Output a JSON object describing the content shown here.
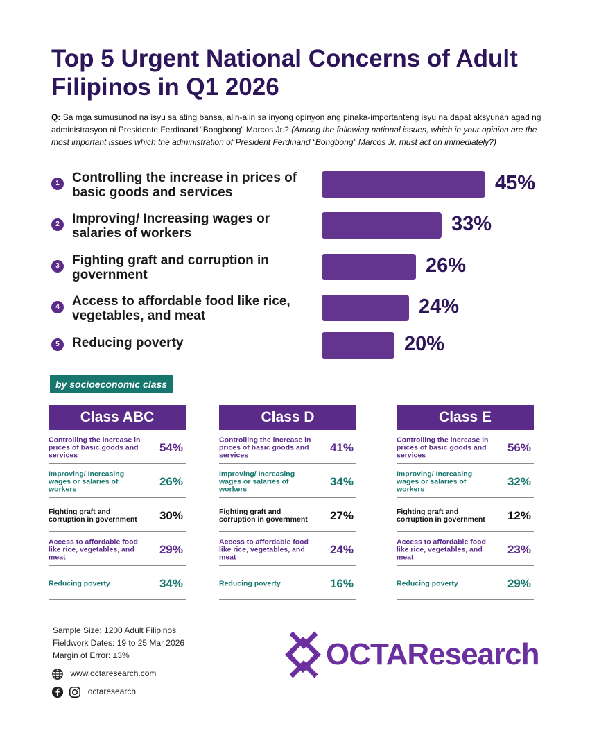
{
  "title": "Top 5 Urgent National Concerns of Adult Filipinos in Q1 2026",
  "question": {
    "label": "Q:",
    "text": "Sa mga sumusunod na isyu sa ating bansa, alin-alin sa inyong opinyon ang pinaka-importanteng isyu na dapat aksyunan agad ng administrasyon ni Presidente Ferdinand “Bongbong” Marcos Jr.?",
    "translation": "(Among the following national issues, which in your opinion are the most important issues which the administration of President Ferdinand “Bongbong” Marcos Jr. must act on immediately?)"
  },
  "chart_data": [
    {
      "type": "bar",
      "categories": [
        "Controlling the increase in prices of basic goods and services",
        "Improving/ Increasing wages or salaries of workers",
        "Fighting graft and corruption in government",
        "Access to affordable food like rice, vegetables, and meat",
        "Reducing poverty"
      ],
      "values": [
        45,
        33,
        26,
        24,
        20
      ],
      "value_labels": [
        "45%",
        "33%",
        "26%",
        "24%",
        "20%"
      ],
      "ranks": [
        "1",
        "2",
        "3",
        "4",
        "5"
      ],
      "bar_color": "#64358f"
    },
    {
      "type": "table",
      "subtitle": "by socioeconomic class",
      "columns": [
        {
          "name": "Class ABC",
          "rows": [
            {
              "label": "Controlling the increase in prices of basic goods and services",
              "value": "54%",
              "color": "#5b2b8a"
            },
            {
              "label": "Improving/ Increasing wages or salaries of workers",
              "value": "26%",
              "color": "#17776e"
            },
            {
              "label": "Fighting graft and corruption in government",
              "value": "30%",
              "color": "#111111"
            },
            {
              "label": "Access to affordable food like rice, vegetables, and meat",
              "value": "29%",
              "color": "#5b2b8a"
            },
            {
              "label": "Reducing poverty",
              "value": "34%",
              "color": "#17776e"
            }
          ]
        },
        {
          "name": "Class D",
          "rows": [
            {
              "label": "Controlling the increase in prices of basic goods and services",
              "value": "41%",
              "color": "#5b2b8a"
            },
            {
              "label": "Improving/ Increasing wages or salaries of workers",
              "value": "34%",
              "color": "#17776e"
            },
            {
              "label": "Fighting graft and corruption in government",
              "value": "27%",
              "color": "#111111"
            },
            {
              "label": "Access to affordable food like rice, vegetables, and meat",
              "value": "24%",
              "color": "#5b2b8a"
            },
            {
              "label": "Reducing poverty",
              "value": "16%",
              "color": "#17776e"
            }
          ]
        },
        {
          "name": "Class E",
          "rows": [
            {
              "label": "Controlling the increase in prices of basic goods and services",
              "value": "56%",
              "color": "#5b2b8a"
            },
            {
              "label": "Improving/ Increasing wages or salaries of workers",
              "value": "32%",
              "color": "#17776e"
            },
            {
              "label": "Fighting graft and corruption in government",
              "value": "12%",
              "color": "#111111"
            },
            {
              "label": "Access to affordable food like rice, vegetables, and meat",
              "value": "23%",
              "color": "#5b2b8a"
            },
            {
              "label": "Reducing poverty",
              "value": "29%",
              "color": "#17776e"
            }
          ]
        }
      ]
    }
  ],
  "notes": {
    "sample": "Sample Size: 1200 Adult Filipinos",
    "fieldwork": "Fieldwork Dates: 19 to 25 Mar 2026",
    "moe": "Margin of Error: ±3%"
  },
  "contact": {
    "website": "www.octaresearch.com",
    "social": "octaresearch",
    "website_icon": "globe-icon",
    "facebook_icon": "facebook-icon",
    "instagram_icon": "instagram-icon"
  },
  "logo": {
    "text": "OCTAResearch",
    "color": "#6b2fa0"
  }
}
